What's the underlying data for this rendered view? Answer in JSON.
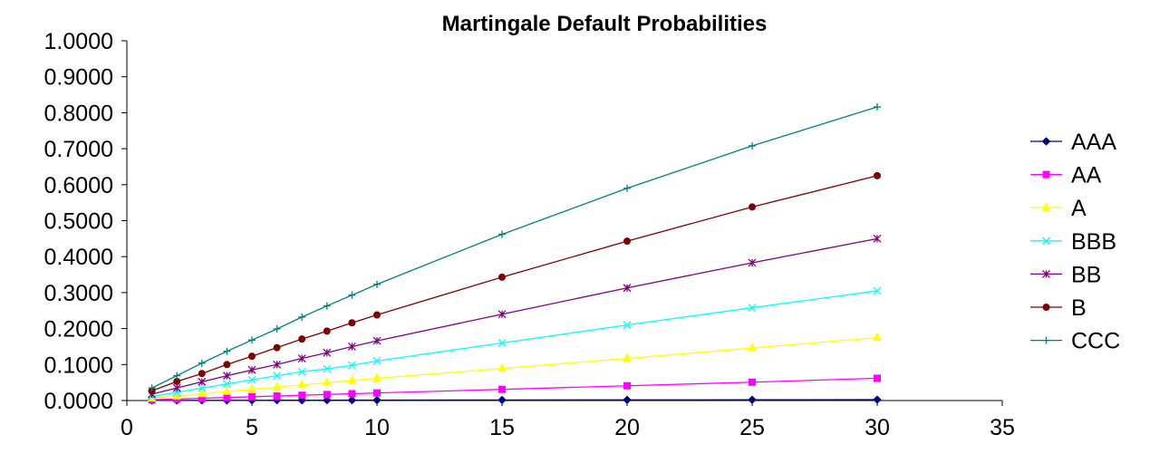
{
  "chart_data": {
    "type": "line",
    "title": "Martingale Default Probabilities",
    "xlabel": "",
    "ylabel": "",
    "xlim": [
      0,
      35
    ],
    "ylim": [
      0,
      1
    ],
    "x_ticks": [
      0,
      5,
      10,
      15,
      20,
      25,
      30,
      35
    ],
    "x_tick_labels": [
      "0",
      "5",
      "10",
      "15",
      "20",
      "25",
      "30",
      "35"
    ],
    "y_ticks": [
      0,
      0.1,
      0.2,
      0.3,
      0.4,
      0.5,
      0.6,
      0.7,
      0.8,
      0.9,
      1.0
    ],
    "y_tick_labels": [
      "0.0000",
      "0.1000",
      "0.2000",
      "0.3000",
      "0.4000",
      "0.5000",
      "0.6000",
      "0.7000",
      "0.8000",
      "0.9000",
      "1.0000"
    ],
    "grid": false,
    "legend_position": "right",
    "x": [
      1,
      2,
      3,
      4,
      5,
      6,
      7,
      8,
      9,
      10,
      15,
      20,
      25,
      30
    ],
    "series": [
      {
        "name": "AAA",
        "color": "#000080",
        "marker": "diamond",
        "values": [
          0.0003,
          0.0004,
          0.0005,
          0.0006,
          0.0007,
          0.0008,
          0.0009,
          0.001,
          0.0011,
          0.0012,
          0.0015,
          0.0018,
          0.0021,
          0.0024
        ]
      },
      {
        "name": "AA",
        "color": "#FF00FF",
        "marker": "square",
        "values": [
          0.0021,
          0.0042,
          0.0063,
          0.0084,
          0.0105,
          0.0126,
          0.0147,
          0.0168,
          0.0189,
          0.021,
          0.031,
          0.041,
          0.051,
          0.062
        ]
      },
      {
        "name": "A",
        "color": "#FFFF00",
        "marker": "triangle",
        "values": [
          0.0062,
          0.0124,
          0.0186,
          0.0248,
          0.031,
          0.0372,
          0.0434,
          0.0496,
          0.0558,
          0.062,
          0.089,
          0.117,
          0.146,
          0.175
        ]
      },
      {
        "name": "BBB",
        "color": "#00FFFF",
        "marker": "x",
        "values": [
          0.0115,
          0.023,
          0.0345,
          0.046,
          0.0575,
          0.069,
          0.08,
          0.088,
          0.098,
          0.11,
          0.16,
          0.21,
          0.258,
          0.305
        ]
      },
      {
        "name": "BB",
        "color": "#800080",
        "marker": "star",
        "values": [
          0.0175,
          0.035,
          0.052,
          0.069,
          0.085,
          0.1,
          0.117,
          0.133,
          0.15,
          0.166,
          0.24,
          0.313,
          0.383,
          0.45
        ]
      },
      {
        "name": "B",
        "color": "#800000",
        "marker": "circle",
        "values": [
          0.027,
          0.053,
          0.075,
          0.1,
          0.123,
          0.147,
          0.171,
          0.193,
          0.216,
          0.238,
          0.343,
          0.443,
          0.538,
          0.625
        ]
      },
      {
        "name": "CCC",
        "color": "#008080",
        "marker": "plus",
        "values": [
          0.035,
          0.069,
          0.104,
          0.137,
          0.168,
          0.199,
          0.232,
          0.263,
          0.293,
          0.323,
          0.462,
          0.59,
          0.708,
          0.816
        ]
      }
    ]
  }
}
